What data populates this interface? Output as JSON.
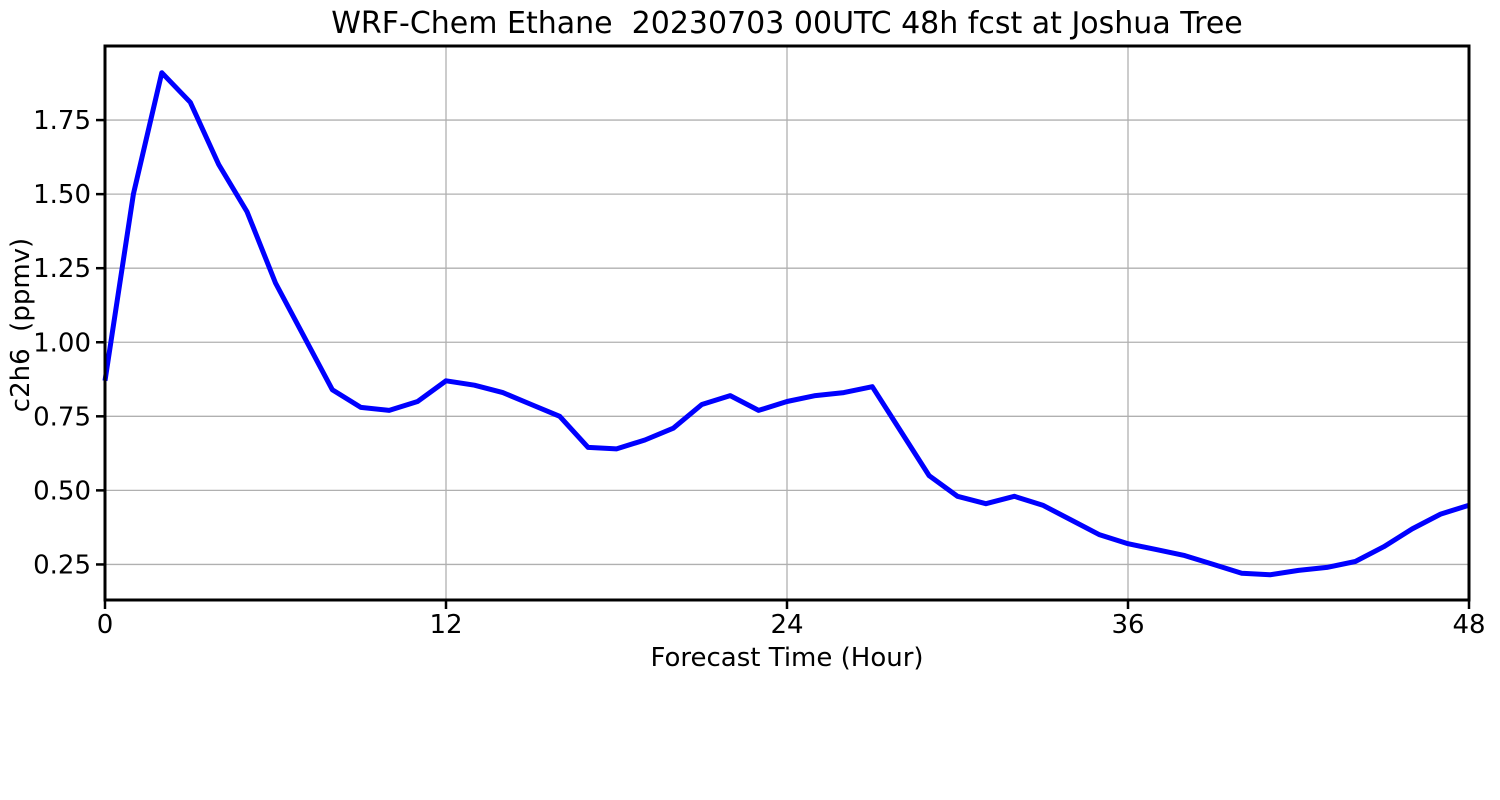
{
  "chart_data": {
    "type": "line",
    "title": "WRF-Chem Ethane  20230703 00UTC 48h fcst at Joshua Tree",
    "xlabel": "Forecast Time (Hour)",
    "ylabel": "c2h6  (ppmv)",
    "series": [
      {
        "name": "c2h6",
        "x": [
          0,
          1,
          2,
          3,
          4,
          5,
          6,
          7,
          8,
          9,
          10,
          11,
          12,
          13,
          14,
          15,
          16,
          17,
          18,
          19,
          20,
          21,
          22,
          23,
          24,
          25,
          26,
          27,
          28,
          29,
          30,
          31,
          32,
          33,
          34,
          35,
          36,
          37,
          38,
          39,
          40,
          41,
          42,
          43,
          44,
          45,
          46,
          47,
          48
        ],
        "values": [
          0.87,
          1.5,
          1.91,
          1.81,
          1.6,
          1.44,
          1.2,
          1.02,
          0.84,
          0.78,
          0.77,
          0.8,
          0.87,
          0.855,
          0.83,
          0.79,
          0.75,
          0.645,
          0.64,
          0.67,
          0.71,
          0.79,
          0.82,
          0.77,
          0.8,
          0.82,
          0.83,
          0.85,
          0.7,
          0.55,
          0.48,
          0.455,
          0.48,
          0.45,
          0.4,
          0.35,
          0.32,
          0.3,
          0.28,
          0.25,
          0.22,
          0.215,
          0.23,
          0.24,
          0.26,
          0.31,
          0.37,
          0.42,
          0.45
        ]
      }
    ],
    "xlim": [
      0,
      48
    ],
    "ylim": [
      0.13,
      2.0
    ],
    "xticks": [
      0,
      12,
      24,
      36,
      48
    ],
    "yticks": [
      0.25,
      0.5,
      0.75,
      1.0,
      1.25,
      1.5,
      1.75
    ],
    "ytick_decimals": 2,
    "grid": true,
    "legend": "none",
    "colors": {
      "line": "#0000ff",
      "grid": "#b0b0b0",
      "spine": "#000000",
      "background": "#ffffff"
    }
  }
}
